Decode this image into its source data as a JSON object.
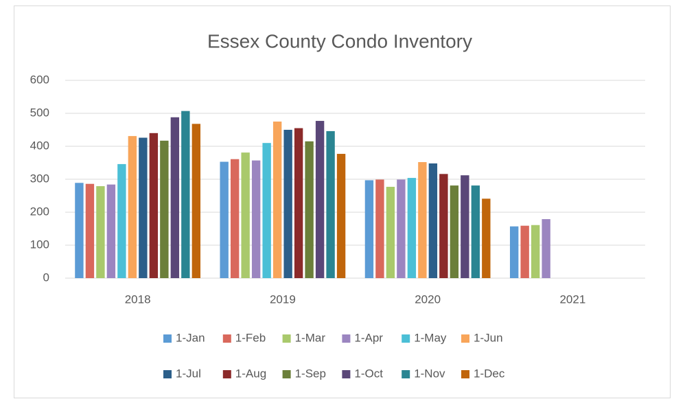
{
  "chart_data": {
    "type": "bar",
    "title": "Essex County Condo Inventory",
    "categories": [
      "2018",
      "2019",
      "2020",
      "2021"
    ],
    "series": [
      {
        "name": "1-Jan",
        "color": "#5b9bd5",
        "values": [
          289,
          353,
          297,
          157
        ]
      },
      {
        "name": "1-Feb",
        "color": "#d9685c",
        "values": [
          286,
          361,
          299,
          159
        ]
      },
      {
        "name": "1-Mar",
        "color": "#a9c96c",
        "values": [
          279,
          381,
          277,
          161
        ]
      },
      {
        "name": "1-Apr",
        "color": "#9b85c0",
        "values": [
          284,
          357,
          299,
          179
        ]
      },
      {
        "name": "1-May",
        "color": "#4bbfd6",
        "values": [
          346,
          410,
          304,
          null
        ]
      },
      {
        "name": "1-Jun",
        "color": "#f8a55a",
        "values": [
          431,
          475,
          352,
          null
        ]
      },
      {
        "name": "1-Jul",
        "color": "#2c5f8a",
        "values": [
          426,
          450,
          348,
          null
        ]
      },
      {
        "name": "1-Aug",
        "color": "#8b2a2a",
        "values": [
          440,
          455,
          316,
          null
        ]
      },
      {
        "name": "1-Sep",
        "color": "#6b7f3a",
        "values": [
          417,
          415,
          281,
          null
        ]
      },
      {
        "name": "1-Oct",
        "color": "#5a4778",
        "values": [
          488,
          477,
          312,
          null
        ]
      },
      {
        "name": "1-Nov",
        "color": "#2a8592",
        "values": [
          507,
          446,
          281,
          null
        ]
      },
      {
        "name": "1-Dec",
        "color": "#c0650b",
        "values": [
          468,
          377,
          241,
          null
        ]
      }
    ],
    "ylim": [
      0,
      600
    ],
    "yticks": [
      0,
      100,
      200,
      300,
      400,
      500,
      600
    ],
    "grid": true,
    "legend": "bottom"
  }
}
